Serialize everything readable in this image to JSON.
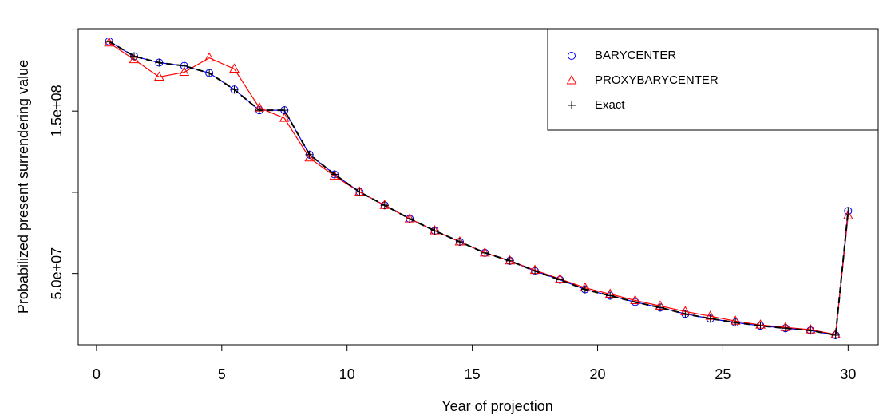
{
  "chart_data": {
    "type": "line",
    "xlabel": "Year of projection",
    "ylabel": "Probabilized present surrendering value",
    "x": [
      0.5,
      1.5,
      2.5,
      3.5,
      4.5,
      5.5,
      6.5,
      7.5,
      8.5,
      9.5,
      10.5,
      11.5,
      12.5,
      13.5,
      14.5,
      15.5,
      16.5,
      17.5,
      18.5,
      19.5,
      20.5,
      21.5,
      22.5,
      23.5,
      24.5,
      25.5,
      26.5,
      27.5,
      28.5,
      29.5,
      30
    ],
    "series": [
      {
        "name": "BARYCENTER",
        "color": "#0000ff",
        "marker": "circle",
        "line": true,
        "values": [
          192900000,
          183700000,
          179800000,
          177800000,
          173400000,
          163200000,
          150500000,
          150500000,
          123200000,
          111000000,
          100200000,
          92000000,
          83700000,
          76300000,
          69500000,
          62700000,
          57800000,
          51500000,
          46100000,
          40200000,
          36300000,
          32400000,
          29000000,
          25100000,
          22200000,
          19800000,
          17800000,
          16300000,
          14900000,
          12000000,
          88500000
        ]
      },
      {
        "name": "PROXYBARYCENTER",
        "color": "#ff0000",
        "marker": "triangle",
        "line": true,
        "values": [
          192000000,
          181700000,
          171000000,
          173900000,
          182700000,
          175900000,
          152000000,
          145600000,
          121200000,
          110000000,
          100200000,
          92000000,
          83700000,
          76300000,
          69500000,
          62700000,
          57800000,
          52000000,
          46600000,
          41200000,
          37300000,
          33400000,
          30000000,
          26600000,
          23700000,
          20700000,
          18300000,
          16800000,
          15400000,
          12400000,
          85600000
        ]
      },
      {
        "name": "Exact",
        "color": "#000000",
        "marker": "plus",
        "line": true,
        "dashed": true,
        "values": [
          192900000,
          183700000,
          179800000,
          177800000,
          173400000,
          163200000,
          150500000,
          150500000,
          123200000,
          111000000,
          100200000,
          92000000,
          83700000,
          76300000,
          69500000,
          62700000,
          57800000,
          51500000,
          46100000,
          40200000,
          36300000,
          32400000,
          29000000,
          25100000,
          22200000,
          19800000,
          17800000,
          16300000,
          14900000,
          12000000,
          88500000
        ]
      }
    ],
    "xlim": [
      -0.73,
      31.2
    ],
    "xticks": [
      0,
      5,
      10,
      15,
      20,
      25,
      30
    ],
    "ylim": [
      6100000,
      200700000
    ],
    "yticks": [
      {
        "value": 50000000,
        "label": "5.0e+07"
      },
      {
        "value": 100000000,
        "label": null
      },
      {
        "value": 150000000,
        "label": "1.5e+08"
      },
      {
        "value": 200000000,
        "label": null
      }
    ],
    "legend": "top-right"
  }
}
